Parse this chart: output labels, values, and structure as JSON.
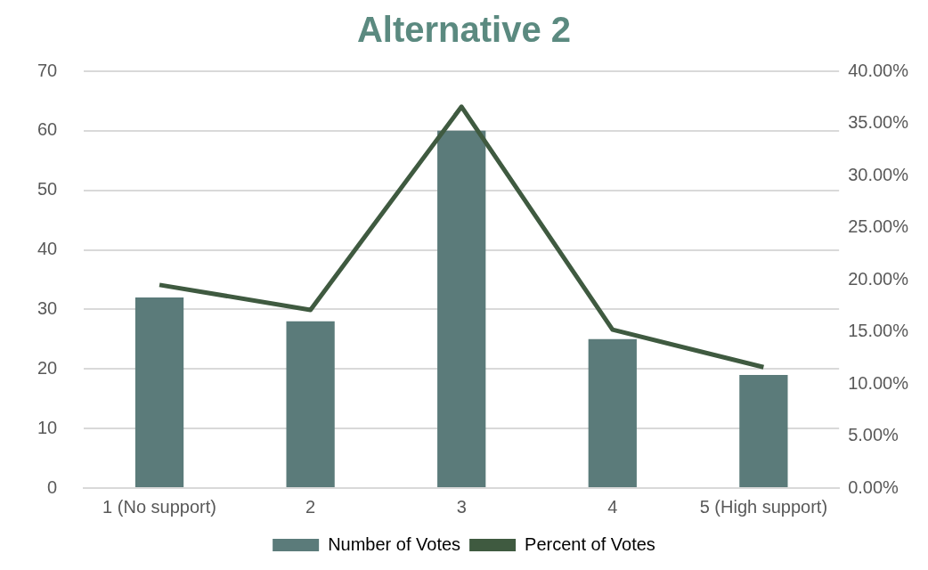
{
  "chart_data": {
    "type": "bar",
    "title": "Alternative 2",
    "categories": [
      "1 (No support)",
      "2",
      "3",
      "4",
      "5 (High support)"
    ],
    "series": [
      {
        "name": "Number of Votes",
        "color": "#5b7b7a",
        "values": [
          32,
          28,
          60,
          25,
          19
        ]
      },
      {
        "name": "Percent of Votes",
        "type": "line",
        "axis": "y2",
        "color": "#3f5a40",
        "values": [
          19.5,
          17.1,
          36.6,
          15.2,
          11.6
        ]
      }
    ],
    "ylim": [
      0,
      70
    ],
    "yticks": [
      0,
      10,
      20,
      30,
      40,
      50,
      60,
      70
    ],
    "y2lim": [
      0,
      40
    ],
    "y2ticks": [
      {
        "value": 0,
        "label": "0.00%"
      },
      {
        "value": 5,
        "label": "5.00%"
      },
      {
        "value": 10,
        "label": "10.00%"
      },
      {
        "value": 15,
        "label": "15.00%"
      },
      {
        "value": 20,
        "label": "20.00%"
      },
      {
        "value": 25,
        "label": "25.00%"
      },
      {
        "value": 30,
        "label": "30.00%"
      },
      {
        "value": 35,
        "label": "35.00%"
      },
      {
        "value": 40,
        "label": "40.00%"
      }
    ],
    "grid": "y",
    "legend": "bottom",
    "marker": "none"
  }
}
